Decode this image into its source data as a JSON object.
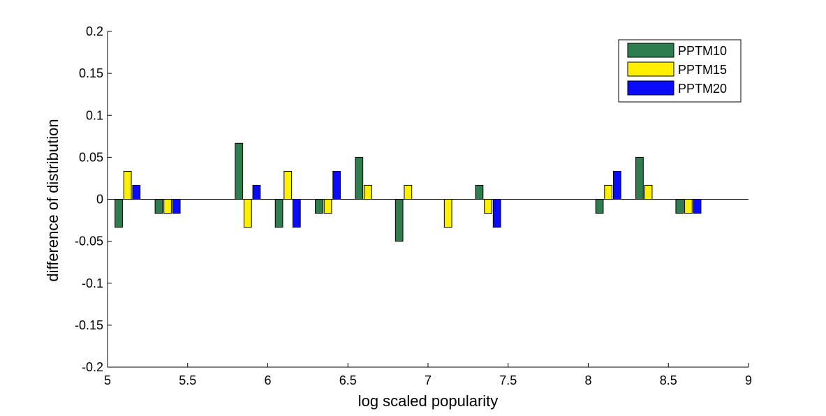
{
  "chart_data": {
    "type": "bar",
    "title": "",
    "xlabel": "log scaled popularity",
    "ylabel": "difference of distribution",
    "xlim": [
      5,
      9
    ],
    "ylim": [
      -0.2,
      0.2
    ],
    "grid": false,
    "legend_position": "top-right",
    "x_ticks": [
      5,
      5.5,
      6,
      6.5,
      7,
      7.5,
      8,
      8.5,
      9
    ],
    "x_tick_labels": [
      "5",
      "5.5",
      "6",
      "6.5",
      "7",
      "7.5",
      "8",
      "8.5",
      "9"
    ],
    "y_ticks": [
      -0.2,
      -0.15,
      -0.1,
      -0.05,
      0,
      0.05,
      0.1,
      0.15,
      0.2
    ],
    "y_tick_labels": [
      "-0.2",
      "-0.15",
      "-0.1",
      "-0.05",
      "0",
      "0.05",
      "0.1",
      "0.15",
      "0.2"
    ],
    "categories": [
      5.125,
      5.375,
      5.625,
      5.875,
      6.125,
      6.375,
      6.625,
      6.875,
      7.125,
      7.375,
      7.625,
      7.875,
      8.125,
      8.375,
      8.625
    ],
    "series": [
      {
        "name": "PPTM10",
        "color": "#2e7d4f",
        "values": [
          -0.0333,
          -0.0167,
          0,
          0.0667,
          -0.0333,
          -0.0167,
          0.05,
          -0.05,
          0,
          0.0167,
          0,
          0,
          -0.0167,
          0.05,
          -0.0167
        ]
      },
      {
        "name": "PPTM15",
        "color": "#ffef00",
        "values": [
          0.0333,
          -0.0167,
          0,
          -0.0333,
          0.0333,
          -0.0167,
          0.0167,
          0.0167,
          -0.0333,
          -0.0167,
          0,
          0,
          0.0167,
          0.0167,
          -0.0167
        ]
      },
      {
        "name": "PPTM20",
        "color": "#0a0aff",
        "values": [
          0.0167,
          -0.0167,
          0,
          0.0167,
          -0.0333,
          0.0333,
          0,
          0,
          0,
          -0.0333,
          0,
          0,
          0.0333,
          0,
          -0.0167
        ]
      }
    ]
  }
}
